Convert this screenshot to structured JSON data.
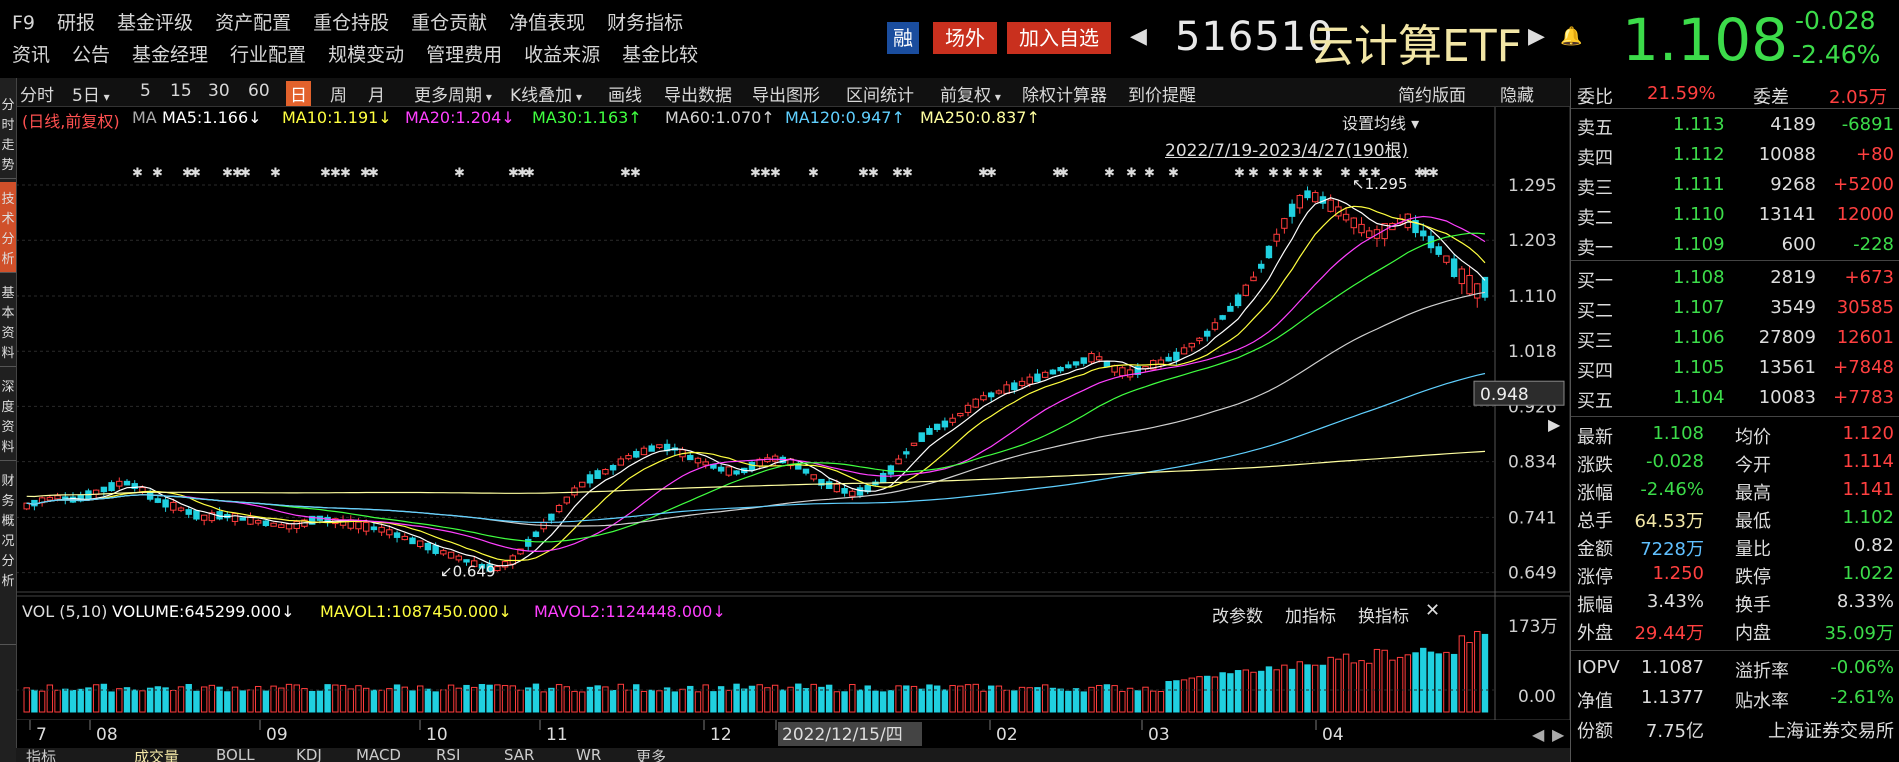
{
  "menu": {
    "row1": [
      "F9",
      "研报",
      "基金评级",
      "资产配置",
      "重仓持股",
      "重仓贡献",
      "净值表现",
      "财务指标"
    ],
    "row2": [
      "资讯",
      "公告",
      "基金经理",
      "行业配置",
      "规模变动",
      "管理费用",
      "收益来源",
      "基金比较"
    ]
  },
  "header": {
    "rong": "融",
    "outside": "场外",
    "add": "加入自选",
    "code": "516510",
    "name": "云计算ETF",
    "price": "1.108",
    "change": "-0.028",
    "change_pct": "-2.46%"
  },
  "toolbar": {
    "items": [
      "分时",
      "5日",
      "5",
      "15",
      "30",
      "60",
      "日",
      "周",
      "月",
      "更多周期",
      "K线叠加",
      "画线",
      "导出数据",
      "导出图形",
      "区间统计",
      "前复权",
      "除权计算器",
      "到价提醒"
    ],
    "active": "日",
    "right": [
      "简约版面",
      "隐藏"
    ]
  },
  "left_strip": [
    "分",
    "时",
    "走",
    "势",
    "技",
    "术",
    "分",
    "析",
    "基",
    "本",
    "资",
    "料",
    "深",
    "度",
    "资",
    "料",
    "财",
    "务",
    "概",
    "况",
    "分",
    "析"
  ],
  "chart_title": "(日线,前复权)",
  "ma_label": "MA",
  "ma_legend": [
    {
      "label": "MA5:1.166↓",
      "color": "#ffffff"
    },
    {
      "label": "MA10:1.191↓",
      "color": "#ffff40"
    },
    {
      "label": "MA20:1.204↓",
      "color": "#ff40ff"
    },
    {
      "label": "MA30:1.163↑",
      "color": "#40ff40"
    },
    {
      "label": "MA60:1.070↑",
      "color": "#d0d0d0"
    },
    {
      "label": "MA120:0.947↑",
      "color": "#60d0ff"
    },
    {
      "label": "MA250:0.837↑",
      "color": "#ffffa0"
    }
  ],
  "settings_ma": "设置均线",
  "date_range": "2022/7/19-2023/4/27(190根)",
  "price_axis": [
    "1.295",
    "1.203",
    "1.110",
    "1.018",
    "0.926",
    "0.834",
    "0.741",
    "0.649"
  ],
  "cursor_price": "0.948",
  "high_mark": "1.295",
  "low_mark": "0.649",
  "vol_legend": {
    "main": "VOL (5,10)",
    "volume": "VOLUME:645299.000↓",
    "mavol1": "MAVOL1:1087450.000↓",
    "mavol2": "MAVOL2:1124448.000↓"
  },
  "vol_buttons": [
    "改参数",
    "加指标",
    "换指标"
  ],
  "vol_axis": [
    "173万",
    "0.00"
  ],
  "x_axis": [
    "7",
    "08",
    "09",
    "10",
    "11",
    "12",
    "2022/12/15/四",
    "02",
    "03",
    "04"
  ],
  "bottom_tabs": [
    "指标",
    "成交量",
    "BOLL",
    "KDJ",
    "MACD",
    "RSI",
    "SAR",
    "WR",
    "更多"
  ],
  "right_panel": {
    "wei_bi": {
      "label": "委比",
      "value": "21.59%"
    },
    "wei_cha": {
      "label": "委差",
      "value": "2.05万"
    },
    "asks": [
      {
        "label": "卖五",
        "price": "1.113",
        "vol": "4189",
        "chg": "-6891"
      },
      {
        "label": "卖四",
        "price": "1.112",
        "vol": "10088",
        "chg": "+80"
      },
      {
        "label": "卖三",
        "price": "1.111",
        "vol": "9268",
        "chg": "+5200"
      },
      {
        "label": "卖二",
        "price": "1.110",
        "vol": "13141",
        "chg": "12000"
      },
      {
        "label": "卖一",
        "price": "1.109",
        "vol": "600",
        "chg": "-228"
      }
    ],
    "bids": [
      {
        "label": "买一",
        "price": "1.108",
        "vol": "2819",
        "chg": "+673"
      },
      {
        "label": "买二",
        "price": "1.107",
        "vol": "3549",
        "chg": "30585"
      },
      {
        "label": "买三",
        "price": "1.106",
        "vol": "27809",
        "chg": "12601"
      },
      {
        "label": "买四",
        "price": "1.105",
        "vol": "13561",
        "chg": "+7848"
      },
      {
        "label": "买五",
        "price": "1.104",
        "vol": "10083",
        "chg": "+7783"
      }
    ],
    "stats": [
      [
        {
          "l": "最新",
          "v": "1.108",
          "c": "#3cdc4a"
        },
        {
          "l": "均价",
          "v": "1.120",
          "c": "#ff4040"
        }
      ],
      [
        {
          "l": "涨跌",
          "v": "-0.028",
          "c": "#3cdc4a"
        },
        {
          "l": "今开",
          "v": "1.114",
          "c": "#ff4040"
        }
      ],
      [
        {
          "l": "涨幅",
          "v": "-2.46%",
          "c": "#3cdc4a"
        },
        {
          "l": "最高",
          "v": "1.141",
          "c": "#ff4040"
        }
      ],
      [
        {
          "l": "总手",
          "v": "64.53万",
          "c": "#f2e6a6"
        },
        {
          "l": "最低",
          "v": "1.102",
          "c": "#3cdc4a"
        }
      ],
      [
        {
          "l": "金额",
          "v": "7228万",
          "c": "#60c0ff"
        },
        {
          "l": "量比",
          "v": "0.82",
          "c": "#ddd"
        }
      ],
      [
        {
          "l": "涨停",
          "v": "1.250",
          "c": "#ff4040"
        },
        {
          "l": "跌停",
          "v": "1.022",
          "c": "#3cdc4a"
        }
      ],
      [
        {
          "l": "振幅",
          "v": "3.43%",
          "c": "#ddd"
        },
        {
          "l": "换手",
          "v": "8.33%",
          "c": "#ddd"
        }
      ],
      [
        {
          "l": "外盘",
          "v": "29.44万",
          "c": "#ff4040"
        },
        {
          "l": "内盘",
          "v": "35.09万",
          "c": "#3cdc4a"
        }
      ]
    ],
    "iopv": [
      [
        {
          "l": "IOPV",
          "v": "1.1087",
          "c": "#ddd"
        },
        {
          "l": "溢折率",
          "v": "-0.06%",
          "c": "#3cdc4a"
        }
      ],
      [
        {
          "l": "净值",
          "v": "1.1377",
          "c": "#ddd"
        },
        {
          "l": "贴水率",
          "v": "-2.61%",
          "c": "#3cdc4a"
        }
      ],
      [
        {
          "l": "份额",
          "v": "7.75亿",
          "c": "#ddd"
        },
        {
          "l": "",
          "v": "上海证券交易所",
          "c": "#ddd"
        }
      ]
    ]
  },
  "chart_data": {
    "type": "candlestick",
    "period": "2022/7/19-2023/4/27",
    "ylim": [
      0.649,
      1.295
    ],
    "price_path": [
      0.76,
      0.77,
      0.775,
      0.77,
      0.78,
      0.79,
      0.8,
      0.79,
      0.77,
      0.76,
      0.75,
      0.74,
      0.745,
      0.74,
      0.735,
      0.73,
      0.725,
      0.73,
      0.74,
      0.735,
      0.73,
      0.725,
      0.72,
      0.71,
      0.7,
      0.69,
      0.68,
      0.67,
      0.66,
      0.655,
      0.67,
      0.7,
      0.73,
      0.76,
      0.79,
      0.81,
      0.82,
      0.84,
      0.85,
      0.86,
      0.855,
      0.84,
      0.83,
      0.82,
      0.815,
      0.83,
      0.84,
      0.835,
      0.82,
      0.8,
      0.79,
      0.78,
      0.79,
      0.81,
      0.84,
      0.87,
      0.89,
      0.9,
      0.92,
      0.94,
      0.95,
      0.96,
      0.97,
      0.98,
      0.99,
      1.0,
      1.01,
      0.99,
      0.98,
      0.99,
      1.0,
      1.01,
      1.03,
      1.05,
      1.08,
      1.11,
      1.15,
      1.2,
      1.25,
      1.28,
      1.27,
      1.25,
      1.23,
      1.21,
      1.22,
      1.24,
      1.22,
      1.19,
      1.16,
      1.13,
      1.108
    ],
    "vol_ymax": "173万"
  }
}
